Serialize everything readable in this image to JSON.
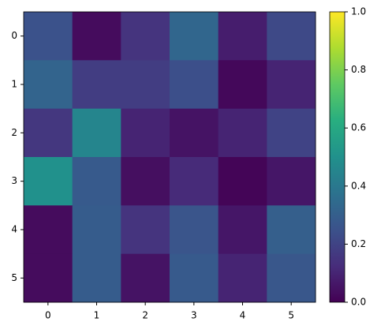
{
  "chart_data": {
    "type": "heatmap",
    "colormap": "viridis",
    "values": [
      [
        0.25,
        0.03,
        0.15,
        0.33,
        0.08,
        0.22
      ],
      [
        0.32,
        0.18,
        0.18,
        0.24,
        0.02,
        0.1
      ],
      [
        0.16,
        0.45,
        0.1,
        0.05,
        0.1,
        0.2
      ],
      [
        0.5,
        0.28,
        0.04,
        0.12,
        0.01,
        0.06
      ],
      [
        0.03,
        0.29,
        0.15,
        0.26,
        0.06,
        0.3
      ],
      [
        0.03,
        0.29,
        0.05,
        0.28,
        0.1,
        0.27
      ]
    ],
    "xticks": [
      0,
      1,
      2,
      3,
      4,
      5
    ],
    "yticks": [
      0,
      1,
      2,
      3,
      4,
      5
    ],
    "clim": [
      0,
      1
    ],
    "cticks": [
      {
        "value": 0,
        "label": "0.0"
      },
      0.2,
      0.4,
      0.6,
      0.8,
      {
        "value": 1,
        "label": "1.0"
      }
    ]
  }
}
